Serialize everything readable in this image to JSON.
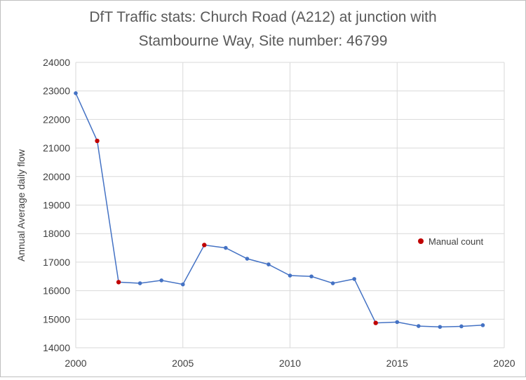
{
  "chart_data": {
    "type": "line",
    "title_lines": [
      "DfT Traffic stats: Church Road (A212) at junction with",
      "Stambourne Way, Site number: 46799"
    ],
    "xlabel": "",
    "ylabel": "Annual Average daily flow",
    "xlim": [
      2000,
      2020
    ],
    "ylim": [
      14000,
      24000
    ],
    "x_ticks": [
      "2000",
      "2005",
      "2010",
      "2015",
      "2020"
    ],
    "y_ticks": [
      "14000",
      "15000",
      "16000",
      "17000",
      "18000",
      "19000",
      "20000",
      "21000",
      "22000",
      "23000",
      "24000"
    ],
    "grid": true,
    "line_color": "#4472c4",
    "manual_color": "#c00000",
    "legend_label": "Manual count",
    "legend_position": "right",
    "x": [
      2000,
      2001,
      2002,
      2003,
      2004,
      2005,
      2006,
      2007,
      2008,
      2009,
      2010,
      2011,
      2012,
      2013,
      2014,
      2015,
      2016,
      2017,
      2018,
      2019
    ],
    "values": [
      22920,
      21250,
      16300,
      16260,
      16360,
      16220,
      17600,
      17500,
      17120,
      16920,
      16530,
      16500,
      16260,
      16410,
      14870,
      14900,
      14760,
      14730,
      14750,
      14790
    ],
    "manual_count": [
      false,
      true,
      true,
      false,
      false,
      false,
      true,
      false,
      false,
      false,
      false,
      false,
      false,
      false,
      true,
      false,
      false,
      false,
      false,
      false
    ]
  }
}
